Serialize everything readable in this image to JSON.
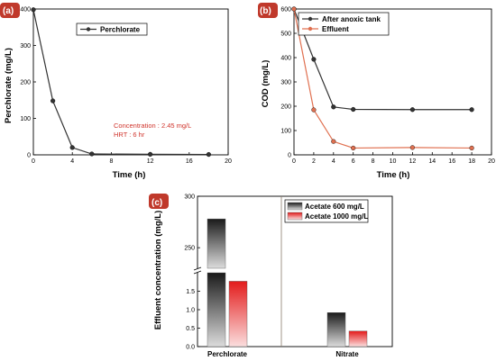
{
  "chart_data": [
    {
      "panel": "(a)",
      "type": "line",
      "xlabel": "Time (h)",
      "ylabel": "Perchlorate (mg/L)",
      "xlim": [
        0,
        20
      ],
      "ylim": [
        0,
        400
      ],
      "xticks": [
        0,
        4,
        8,
        12,
        16,
        20
      ],
      "yticks": [
        0,
        100,
        200,
        300,
        400
      ],
      "legend_position": "top-right",
      "series": [
        {
          "name": "Perchlorate",
          "color": "#333333",
          "marker": "circle",
          "x": [
            0,
            2,
            4,
            6,
            12,
            18
          ],
          "y": [
            398,
            148,
            20,
            2.45,
            1.5,
            1.0
          ]
        }
      ],
      "annotations": [
        "Concentration : 2.45 mg/L",
        "HRT : 6 hr"
      ]
    },
    {
      "panel": "(b)",
      "type": "line",
      "xlabel": "Time (h)",
      "ylabel": "COD (mg/L)",
      "xlim": [
        0,
        20
      ],
      "ylim": [
        0,
        600
      ],
      "xticks": [
        0,
        2,
        4,
        6,
        8,
        10,
        12,
        14,
        16,
        18,
        20
      ],
      "yticks": [
        0,
        100,
        200,
        300,
        400,
        500,
        600
      ],
      "legend_position": "top-right",
      "series": [
        {
          "name": "After anoxic tank",
          "color": "#333333",
          "marker": "circle",
          "x": [
            0,
            2,
            4,
            6,
            12,
            18
          ],
          "y": [
            600,
            393,
            197,
            187,
            186,
            186
          ]
        },
        {
          "name": "Effluent",
          "color": "#e07050",
          "marker": "circle",
          "x": [
            0,
            2,
            4,
            6,
            12,
            18
          ],
          "y": [
            600,
            185,
            55,
            28,
            30,
            28
          ]
        }
      ]
    },
    {
      "panel": "(c)",
      "type": "bar",
      "ylabel": "Effluent concentration (mg/L)",
      "categories": [
        "Perchlorate",
        "Nitrate"
      ],
      "axis_break": true,
      "lower_ylim": [
        0,
        2.0
      ],
      "lower_yticks": [
        0.0,
        0.5,
        1.0,
        1.5
      ],
      "upper_ylim": [
        230,
        300
      ],
      "upper_yticks": [
        250,
        300
      ],
      "legend_position": "top-right",
      "series": [
        {
          "name": "Acetate 600 mg/L",
          "color": "#333333",
          "values": [
            278,
            0.92
          ]
        },
        {
          "name": "Acetate 1000 mg/L",
          "color": "#e02020",
          "values": [
            1.77,
            0.42
          ]
        }
      ]
    }
  ]
}
